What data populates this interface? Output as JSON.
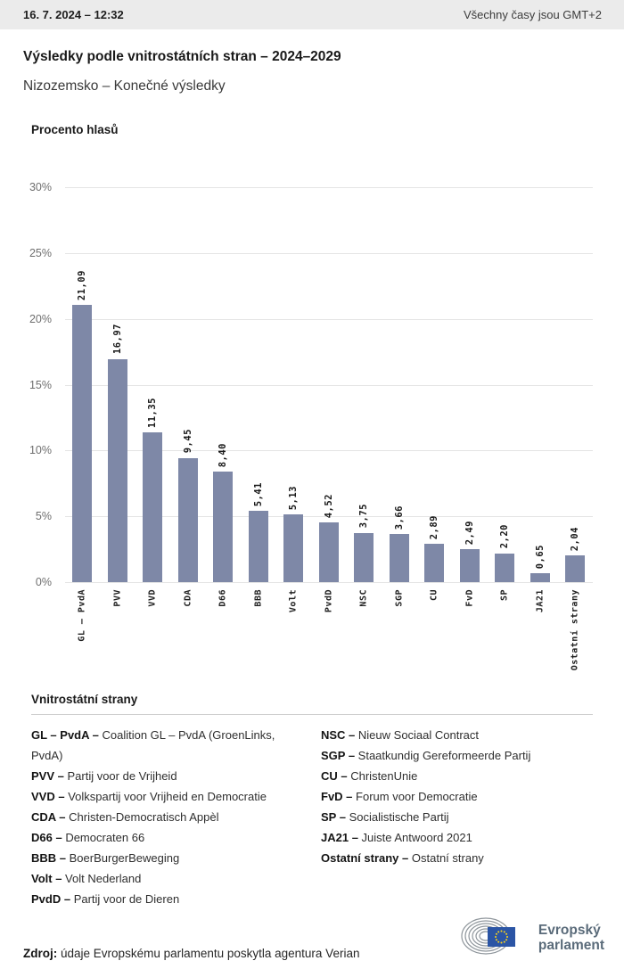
{
  "header": {
    "datetime": "16. 7. 2024 – 12:32",
    "timezone_note": "Všechny časy jsou GMT+2"
  },
  "title": "Výsledky podle vnitrostátních stran – 2024–2029",
  "subtitle": "Nizozemsko – Konečné výsledky",
  "chart_data": {
    "type": "bar",
    "title": "Procento hlasů",
    "categories": [
      "GL – PvdA",
      "PVV",
      "VVD",
      "CDA",
      "D66",
      "BBB",
      "Volt",
      "PvdD",
      "NSC",
      "SGP",
      "CU",
      "FvD",
      "SP",
      "JA21",
      "Ostatní strany"
    ],
    "values": [
      21.09,
      16.97,
      11.35,
      9.45,
      8.4,
      5.41,
      5.13,
      4.52,
      3.75,
      3.66,
      2.89,
      2.49,
      2.2,
      0.65,
      2.04
    ],
    "value_labels": [
      "21,09",
      "16,97",
      "11,35",
      "9,45",
      "8,40",
      "5,41",
      "5,13",
      "4,52",
      "3,75",
      "3,66",
      "2,89",
      "2,49",
      "2,20",
      "0,65",
      "2,04"
    ],
    "xlabel": "",
    "ylabel": "Procento hlasů",
    "ylim": [
      0,
      30
    ],
    "ytick_step": 5,
    "yticks": [
      "0%",
      "5%",
      "10%",
      "15%",
      "20%",
      "25%",
      "30%"
    ],
    "grid": true,
    "legend_position": "none",
    "bar_color": "#7e88a7"
  },
  "legend": {
    "title": "Vnitrostátní strany",
    "columns": [
      [
        {
          "abbr": "GL – PvdA –",
          "name": "Coalition GL – PvdA (GroenLinks, PvdA)"
        },
        {
          "abbr": "PVV –",
          "name": "Partij voor de Vrijheid"
        },
        {
          "abbr": "VVD –",
          "name": "Volkspartij voor Vrijheid en Democratie"
        },
        {
          "abbr": "CDA –",
          "name": "Christen-Democratisch Appèl"
        },
        {
          "abbr": "D66 –",
          "name": "Democraten 66"
        },
        {
          "abbr": "BBB –",
          "name": "BoerBurgerBeweging"
        },
        {
          "abbr": "Volt –",
          "name": "Volt Nederland"
        },
        {
          "abbr": "PvdD –",
          "name": "Partij voor de Dieren"
        }
      ],
      [
        {
          "abbr": "NSC –",
          "name": "Nieuw Sociaal Contract"
        },
        {
          "abbr": "SGP –",
          "name": "Staatkundig Gereformeerde Partij"
        },
        {
          "abbr": "CU –",
          "name": "ChristenUnie"
        },
        {
          "abbr": "FvD –",
          "name": "Forum voor Democratie"
        },
        {
          "abbr": "SP –",
          "name": "Socialistische Partij"
        },
        {
          "abbr": "JA21 –",
          "name": "Juiste Antwoord 2021"
        },
        {
          "abbr": "Ostatní strany –",
          "name": "Ostatní strany"
        }
      ]
    ]
  },
  "footer": {
    "source_label": "Zdroj:",
    "source_text": "údaje Evropskému parlamentu poskytla agentura Verian",
    "logo_line1": "Evropský",
    "logo_line2": "parlament"
  },
  "colors": {
    "bar": "#7e88a7",
    "gridline": "#e4e4e4",
    "header_bg": "#ebebeb",
    "logo_text": "#5a6b7a",
    "eu_flag_blue": "#2b55a5",
    "eu_star_yellow": "#ffd617"
  }
}
